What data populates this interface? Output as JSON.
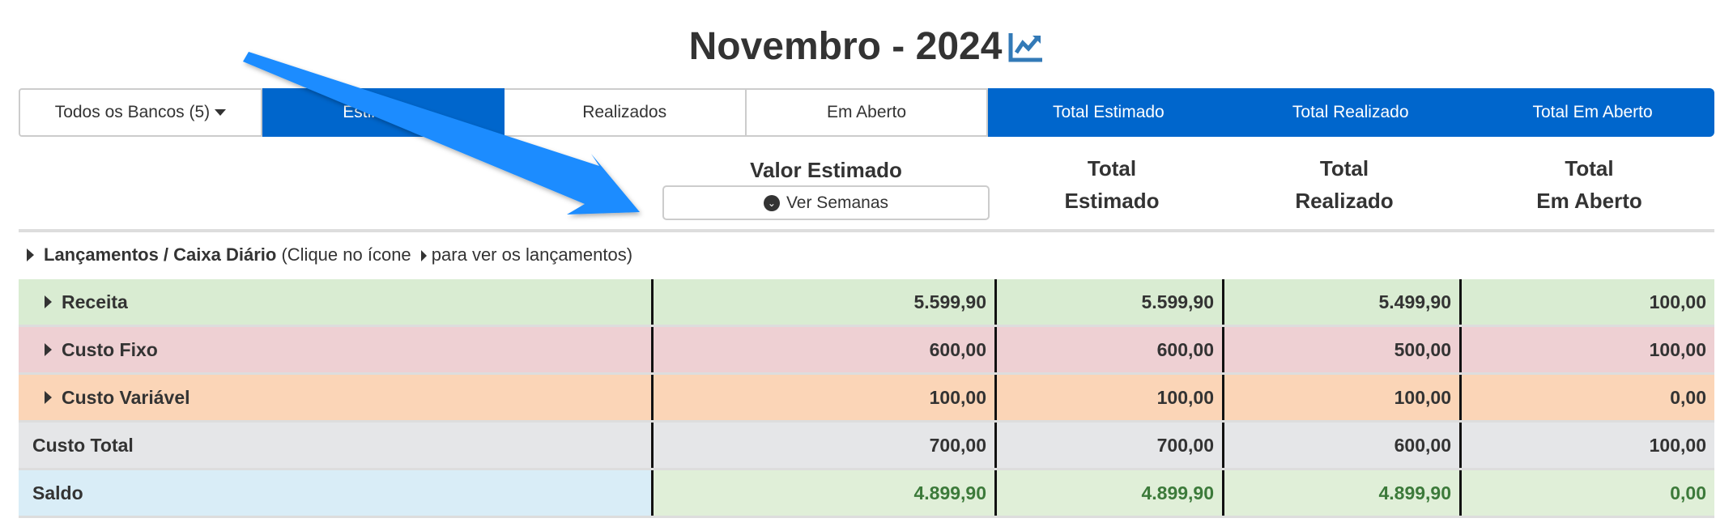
{
  "header": {
    "title": "Novembro - 2024",
    "chart_icon": "chart-line-icon",
    "accent": "#337ab7"
  },
  "tabs": [
    {
      "label": "Todos os Bancos (5)",
      "type": "dropdown"
    },
    {
      "label": "Estimados",
      "active": true
    },
    {
      "label": "Realizados"
    },
    {
      "label": "Em Aberto"
    },
    {
      "label": "Total Estimado",
      "active": true
    },
    {
      "label": "Total Realizado",
      "active": true
    },
    {
      "label": "Total Em Aberto",
      "active": true
    }
  ],
  "columns": {
    "valor_estimado": "Valor Estimado",
    "ver_semanas": "Ver Semanas",
    "total_estimado": [
      "Total",
      "Estimado"
    ],
    "total_realizado": [
      "Total",
      "Realizado"
    ],
    "total_em_aberto": [
      "Total",
      "Em Aberto"
    ]
  },
  "lancamentos": {
    "bold": "Lançamentos / Caixa Diário",
    "hint_before": "(Clique no ícone",
    "hint_after": "para ver os lançamentos)"
  },
  "rows": [
    {
      "label": "Receita",
      "expandable": true,
      "color": "#d9ecd2",
      "values": [
        "5.599,90",
        "5.599,90",
        "5.499,90",
        "100,00"
      ]
    },
    {
      "label": "Custo Fixo",
      "expandable": true,
      "color": "#eed0d3",
      "values": [
        "600,00",
        "600,00",
        "500,00",
        "100,00"
      ]
    },
    {
      "label": "Custo Variável",
      "expandable": true,
      "color": "#fbd5b7",
      "values": [
        "100,00",
        "100,00",
        "100,00",
        "0,00"
      ]
    },
    {
      "label": "Custo Total",
      "expandable": false,
      "color": "#e5e6e8",
      "values": [
        "700,00",
        "700,00",
        "600,00",
        "100,00"
      ]
    },
    {
      "label": "Saldo",
      "expandable": false,
      "color": "#d9edf7",
      "value_color": "#e0efd8",
      "values": [
        "4.899,90",
        "4.899,90",
        "4.899,90",
        "0,00"
      ]
    }
  ],
  "colors": {
    "primary": "#0066cc",
    "positive": "#3c7a3a",
    "annotation_arrow": "#1a8cff"
  }
}
